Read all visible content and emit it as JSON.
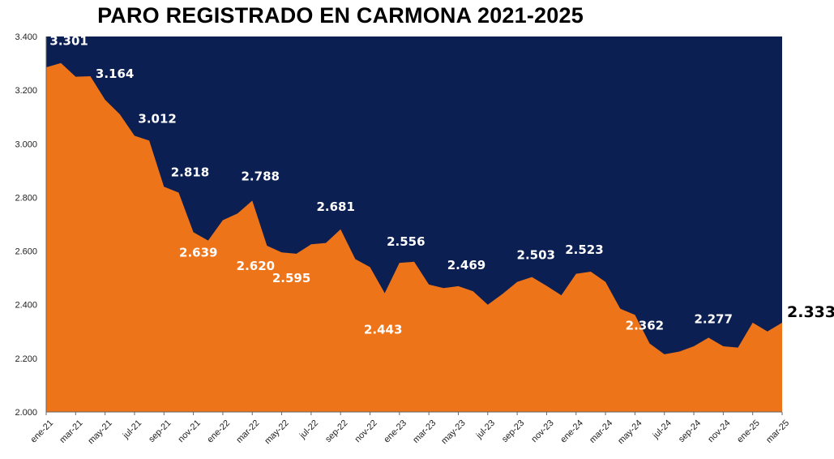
{
  "chart_data": {
    "type": "area",
    "title": "PARO REGISTRADO EN CARMONA 2021-2025",
    "ylim": [
      2000,
      3400
    ],
    "yticks": [
      2000,
      2200,
      2400,
      2600,
      2800,
      3000,
      3200,
      3400
    ],
    "ytick_labels": [
      "2.000",
      "2.200",
      "2.400",
      "2.600",
      "2.800",
      "3.000",
      "3.200",
      "3.400"
    ],
    "xtick_labels": [
      "ene-21",
      "mar-21",
      "may-21",
      "jul-21",
      "sep-21",
      "nov-21",
      "ene-22",
      "mar-22",
      "may-22",
      "jul-22",
      "sep-22",
      "nov-22",
      "ene-23",
      "mar-23",
      "may-23",
      "jul-23",
      "sep-23",
      "nov-23",
      "ene-24",
      "mar-24",
      "may-24",
      "jul-24",
      "sep-24",
      "nov-24",
      "ene-25",
      "mar-25"
    ],
    "x": [
      "ene-21",
      "feb-21",
      "mar-21",
      "abr-21",
      "may-21",
      "jun-21",
      "jul-21",
      "ago-21",
      "sep-21",
      "oct-21",
      "nov-21",
      "dic-21",
      "ene-22",
      "feb-22",
      "mar-22",
      "abr-22",
      "may-22",
      "jun-22",
      "jul-22",
      "ago-22",
      "sep-22",
      "oct-22",
      "nov-22",
      "dic-22",
      "ene-23",
      "feb-23",
      "mar-23",
      "abr-23",
      "may-23",
      "jun-23",
      "jul-23",
      "ago-23",
      "sep-23",
      "oct-23",
      "nov-23",
      "dic-23",
      "ene-24",
      "feb-24",
      "mar-24",
      "abr-24",
      "may-24",
      "jun-24",
      "jul-24",
      "ago-24",
      "sep-24",
      "oct-24",
      "nov-24",
      "dic-24",
      "ene-25",
      "feb-25",
      "mar-25"
    ],
    "values": [
      3285,
      3301,
      3250,
      3252,
      3164,
      3110,
      3030,
      3012,
      2840,
      2818,
      2670,
      2639,
      2715,
      2740,
      2788,
      2620,
      2595,
      2590,
      2625,
      2630,
      2681,
      2570,
      2540,
      2443,
      2556,
      2560,
      2475,
      2462,
      2469,
      2450,
      2400,
      2440,
      2485,
      2503,
      2470,
      2435,
      2515,
      2523,
      2485,
      2385,
      2362,
      2255,
      2215,
      2225,
      2245,
      2277,
      2245,
      2240,
      2333,
      2300,
      2333
    ],
    "data_labels": [
      {
        "index": 1,
        "text": "3.301"
      },
      {
        "index": 4,
        "text": "3.164"
      },
      {
        "index": 7,
        "text": "3.012"
      },
      {
        "index": 9,
        "text": "2.818"
      },
      {
        "index": 11,
        "text": "2.639"
      },
      {
        "index": 14,
        "text": "2.788"
      },
      {
        "index": 15,
        "text": "2.620"
      },
      {
        "index": 16,
        "text": "2.595"
      },
      {
        "index": 20,
        "text": "2.681"
      },
      {
        "index": 23,
        "text": "2.443"
      },
      {
        "index": 24,
        "text": "2.556"
      },
      {
        "index": 28,
        "text": "2.469"
      },
      {
        "index": 33,
        "text": "2.503"
      },
      {
        "index": 37,
        "text": "2.523"
      },
      {
        "index": 40,
        "text": "2.362"
      },
      {
        "index": 45,
        "text": "2.277"
      },
      {
        "index": 50,
        "text": "2.333"
      }
    ],
    "colors": {
      "area": "#ee741a",
      "background": "#0c1f52"
    },
    "grid": false,
    "legend": "none"
  }
}
